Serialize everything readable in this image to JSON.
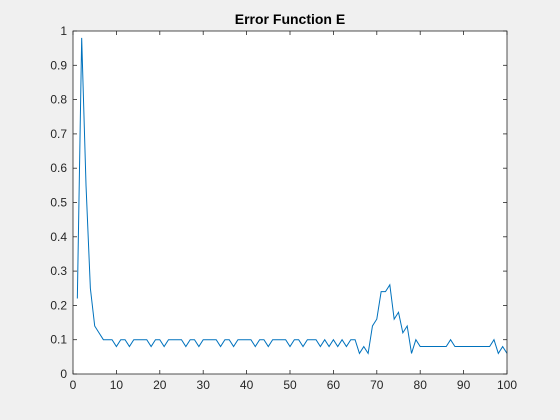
{
  "colors": {
    "figure_background": "#f0f0f0",
    "axes_background": "#ffffff",
    "axis_color": "#262626",
    "series_color": "#0072bd"
  },
  "chart_data": {
    "type": "line",
    "title": "Error Function E",
    "xlabel": "",
    "ylabel": "",
    "xlim": [
      0,
      100
    ],
    "ylim": [
      0,
      1
    ],
    "xticks": [
      0,
      10,
      20,
      30,
      40,
      50,
      60,
      70,
      80,
      90,
      100
    ],
    "xtick_labels": [
      "0",
      "10",
      "20",
      "30",
      "40",
      "50",
      "60",
      "70",
      "80",
      "90",
      "100"
    ],
    "yticks": [
      0,
      0.1,
      0.2,
      0.3,
      0.4,
      0.5,
      0.6,
      0.7,
      0.8,
      0.9,
      1
    ],
    "ytick_labels": [
      "0",
      "0.1",
      "0.2",
      "0.3",
      "0.4",
      "0.5",
      "0.6",
      "0.7",
      "0.8",
      "0.9",
      "1"
    ],
    "grid": false,
    "legend": "none",
    "series": [
      {
        "x": [
          1,
          2,
          3,
          4,
          5,
          6,
          7,
          8,
          9,
          10,
          11,
          12,
          13,
          14,
          15,
          16,
          17,
          18,
          19,
          20,
          21,
          22,
          23,
          24,
          25,
          26,
          27,
          28,
          29,
          30,
          31,
          32,
          33,
          34,
          35,
          36,
          37,
          38,
          39,
          40,
          41,
          42,
          43,
          44,
          45,
          46,
          47,
          48,
          49,
          50,
          51,
          52,
          53,
          54,
          55,
          56,
          57,
          58,
          59,
          60,
          61,
          62,
          63,
          64,
          65,
          66,
          67,
          68,
          69,
          70,
          71,
          72,
          73,
          74,
          75,
          76,
          77,
          78,
          79,
          80,
          81,
          82,
          83,
          84,
          85,
          86,
          87,
          88,
          89,
          90,
          91,
          92,
          93,
          94,
          95,
          96,
          97,
          98,
          99,
          100
        ],
        "y": [
          0.22,
          0.98,
          0.55,
          0.25,
          0.14,
          0.12,
          0.1,
          0.1,
          0.1,
          0.08,
          0.1,
          0.1,
          0.08,
          0.1,
          0.1,
          0.1,
          0.1,
          0.08,
          0.1,
          0.1,
          0.08,
          0.1,
          0.1,
          0.1,
          0.1,
          0.08,
          0.1,
          0.1,
          0.08,
          0.1,
          0.1,
          0.1,
          0.1,
          0.08,
          0.1,
          0.1,
          0.08,
          0.1,
          0.1,
          0.1,
          0.1,
          0.08,
          0.1,
          0.1,
          0.08,
          0.1,
          0.1,
          0.1,
          0.1,
          0.08,
          0.1,
          0.1,
          0.08,
          0.1,
          0.1,
          0.1,
          0.08,
          0.1,
          0.08,
          0.1,
          0.08,
          0.1,
          0.08,
          0.1,
          0.1,
          0.06,
          0.08,
          0.06,
          0.14,
          0.16,
          0.24,
          0.24,
          0.26,
          0.16,
          0.18,
          0.12,
          0.14,
          0.06,
          0.1,
          0.08,
          0.08,
          0.08,
          0.08,
          0.08,
          0.08,
          0.08,
          0.1,
          0.08,
          0.08,
          0.08,
          0.08,
          0.08,
          0.08,
          0.08,
          0.08,
          0.08,
          0.1,
          0.06,
          0.08,
          0.06
        ]
      }
    ]
  }
}
